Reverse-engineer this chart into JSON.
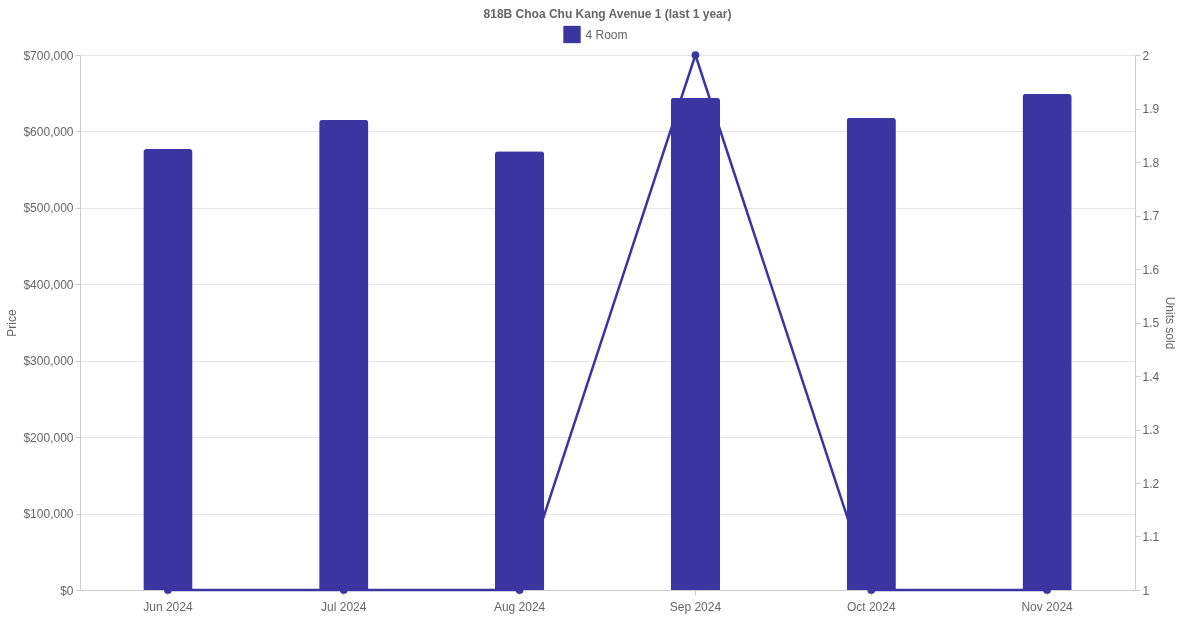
{
  "chart_data": {
    "type": "bar",
    "title": "818B Choa Chu Kang Avenue 1 (last 1 year)",
    "ylabel": "Price",
    "y2label": "Units sold",
    "categories": [
      "Jun 2024",
      "Jul 2024",
      "Aug 2024",
      "Sep 2024",
      "Oct 2024",
      "Nov 2024"
    ],
    "series": [
      {
        "name": "4 Room",
        "color": "#3a35a0",
        "values": [
          577000,
          615000,
          574000,
          644000,
          618000,
          649000
        ]
      },
      {
        "type": "line",
        "axis": "y2",
        "color": "#3a35a0",
        "values": [
          1,
          1,
          1,
          2,
          1,
          1
        ]
      }
    ],
    "ylim": [
      0,
      700000
    ],
    "yticks": [
      {
        "value": 0,
        "label": "$0"
      },
      {
        "value": 100000,
        "label": "$100,000"
      },
      {
        "value": 200000,
        "label": "$200,000"
      },
      {
        "value": 300000,
        "label": "$300,000"
      },
      {
        "value": 400000,
        "label": "$400,000"
      },
      {
        "value": 500000,
        "label": "$500,000"
      },
      {
        "value": 600000,
        "label": "$600,000"
      },
      {
        "value": 700000,
        "label": "$700,000"
      }
    ],
    "y2lim": [
      1,
      2
    ],
    "y2ticks": [
      1,
      1.1,
      1.2,
      1.3,
      1.4,
      1.5,
      1.6,
      1.7,
      1.8,
      1.9,
      2
    ],
    "grid": "y",
    "legend": "top",
    "marker": "circle",
    "line_style": "solid"
  }
}
